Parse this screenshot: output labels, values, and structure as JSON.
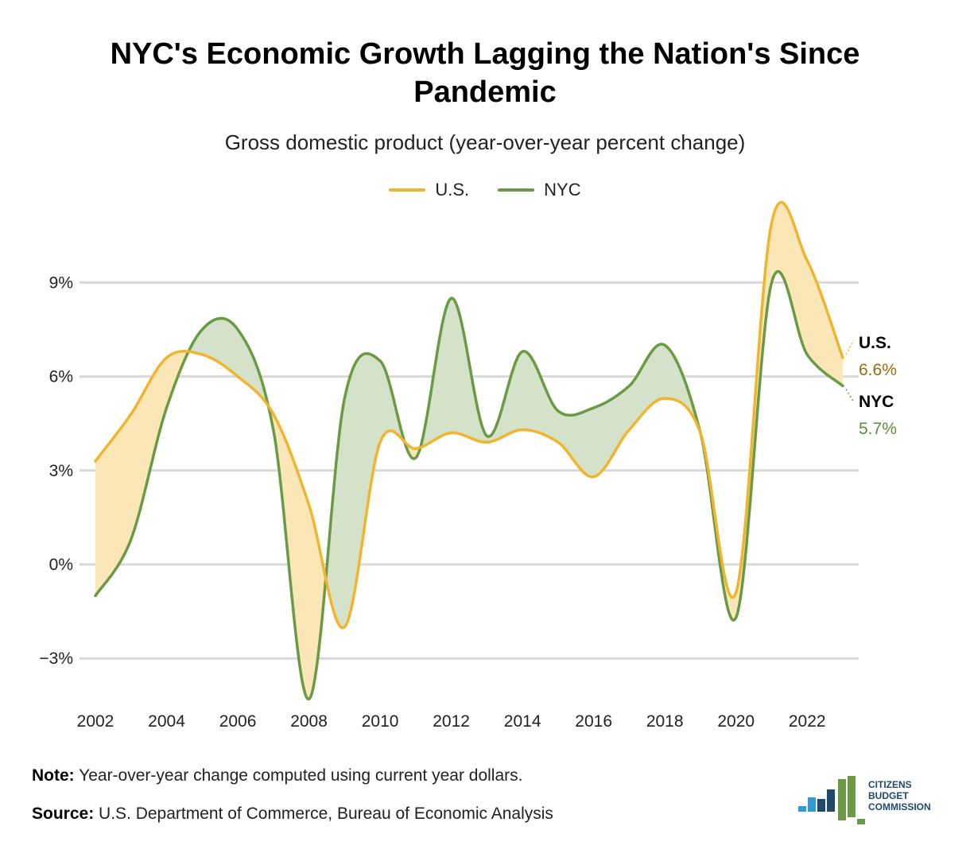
{
  "title": "NYC's Economic Growth Lagging the Nation's Since Pandemic",
  "subtitle": "Gross domestic product (year-over-year percent change)",
  "legend": [
    {
      "name": "U.S.",
      "color": "#F0B52E"
    },
    {
      "name": "NYC",
      "color": "#6A9A44"
    }
  ],
  "end_labels": {
    "us_name": "U.S.",
    "us_value": "6.6%",
    "nyc_name": "NYC",
    "nyc_value": "5.7%"
  },
  "note_label": "Note:",
  "note_text": " Year-over-year change computed using current year dollars.",
  "source_label": "Source:",
  "source_text": " U.S. Department of Commerce, Bureau of Economic Analysis",
  "logo": {
    "lines": [
      "CITIZENS",
      "BUDGET",
      "COMMISSION"
    ],
    "colors": {
      "light_blue": "#2E9BD6",
      "navy": "#1F4A6B",
      "green": "#6A9A44"
    }
  },
  "colors": {
    "us_line": "#F0B52E",
    "us_fill": "#FBE6B8",
    "nyc_line": "#6A9A44",
    "nyc_fill": "#D3E2C8",
    "us_value_text": "#9A6B0B",
    "nyc_value_text": "#5E8A3C",
    "grid": "#D9D9D9"
  },
  "chart_data": {
    "type": "line",
    "title": "Gross domestic product (year-over-year percent change)",
    "x": [
      2002,
      2003,
      2004,
      2005,
      2006,
      2007,
      2008,
      2009,
      2010,
      2011,
      2012,
      2013,
      2014,
      2015,
      2016,
      2017,
      2018,
      2019,
      2020,
      2021,
      2022,
      2023
    ],
    "series": [
      {
        "name": "U.S.",
        "values": [
          3.3,
          4.8,
          6.6,
          6.7,
          6.0,
          4.8,
          1.9,
          -2.0,
          3.9,
          3.7,
          4.2,
          3.9,
          4.3,
          3.9,
          2.8,
          4.3,
          5.3,
          4.2,
          -0.9,
          10.9,
          9.7,
          6.6
        ]
      },
      {
        "name": "NYC",
        "values": [
          -1.0,
          0.8,
          5.0,
          7.5,
          7.5,
          4.3,
          -4.3,
          5.3,
          6.5,
          3.4,
          8.5,
          4.1,
          6.8,
          4.9,
          5.0,
          5.7,
          7.0,
          4.2,
          -1.7,
          9.0,
          6.7,
          5.7
        ]
      }
    ],
    "ylim": [
      -4.5,
      11.5
    ],
    "yticks": [
      -3,
      0,
      3,
      6,
      9
    ],
    "ytick_labels": [
      "−3%",
      "0%",
      "3%",
      "6%",
      "9%"
    ],
    "xticks": [
      2002,
      2004,
      2006,
      2008,
      2010,
      2012,
      2014,
      2016,
      2018,
      2020,
      2022
    ],
    "xtick_labels": [
      "2002",
      "2004",
      "2006",
      "2008",
      "2010",
      "2012",
      "2014",
      "2016",
      "2018",
      "2020",
      "2022"
    ],
    "grid": true,
    "legend_position": "top-center",
    "fill_between": true
  }
}
